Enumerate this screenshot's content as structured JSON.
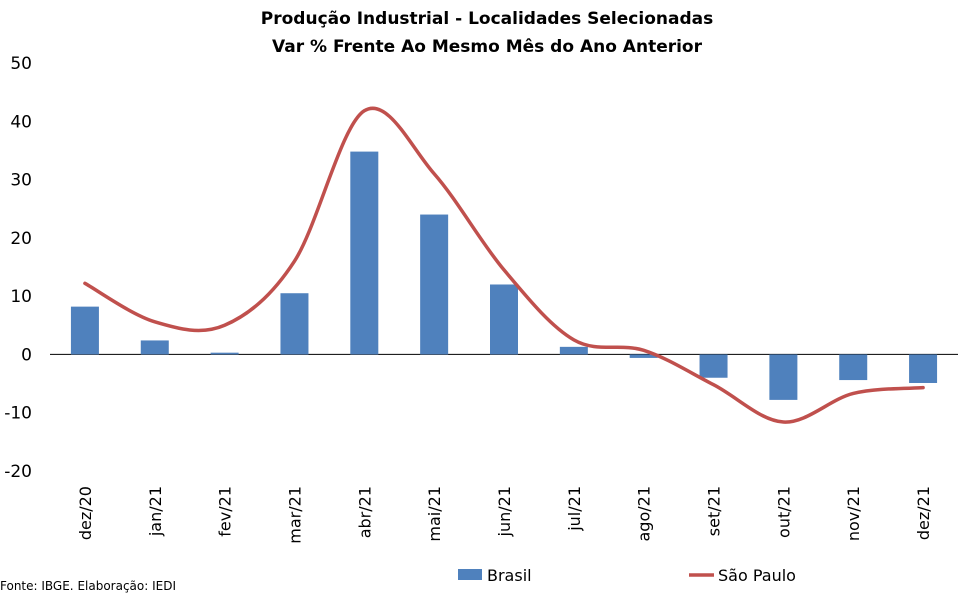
{
  "chart_data": {
    "type": "bar",
    "title": "Produção Industrial - Localidades Selecionadas",
    "subtitle": "Var % Frente Ao Mesmo Mês do Ano Anterior",
    "categories": [
      "dez/20",
      "jan/21",
      "fev/21",
      "mar/21",
      "abr/21",
      "mai/21",
      "jun/21",
      "jul/21",
      "ago/21",
      "set/21",
      "out/21",
      "nov/21",
      "dez/21"
    ],
    "series": [
      {
        "name": "Brasil",
        "type": "bar",
        "color": "#4f81bd",
        "values": [
          8.2,
          2.4,
          0.3,
          10.5,
          34.8,
          24.0,
          12.0,
          1.3,
          -0.6,
          -4.0,
          -7.8,
          -4.4,
          -4.9
        ]
      },
      {
        "name": "São Paulo",
        "type": "line",
        "color": "#c0504d",
        "values": [
          12.2,
          5.6,
          5.0,
          16.0,
          41.8,
          31.0,
          14.5,
          2.5,
          0.7,
          -5.2,
          -11.6,
          -6.7,
          -5.7
        ]
      }
    ],
    "ylim": [
      -20,
      50
    ],
    "yticks": [
      "50",
      "40",
      "30",
      "20",
      "10",
      "0",
      "-10",
      "-20"
    ],
    "legend_position": "bottom",
    "grid": false
  },
  "source_note": "Fonte: IBGE. Elaboração: IEDI"
}
